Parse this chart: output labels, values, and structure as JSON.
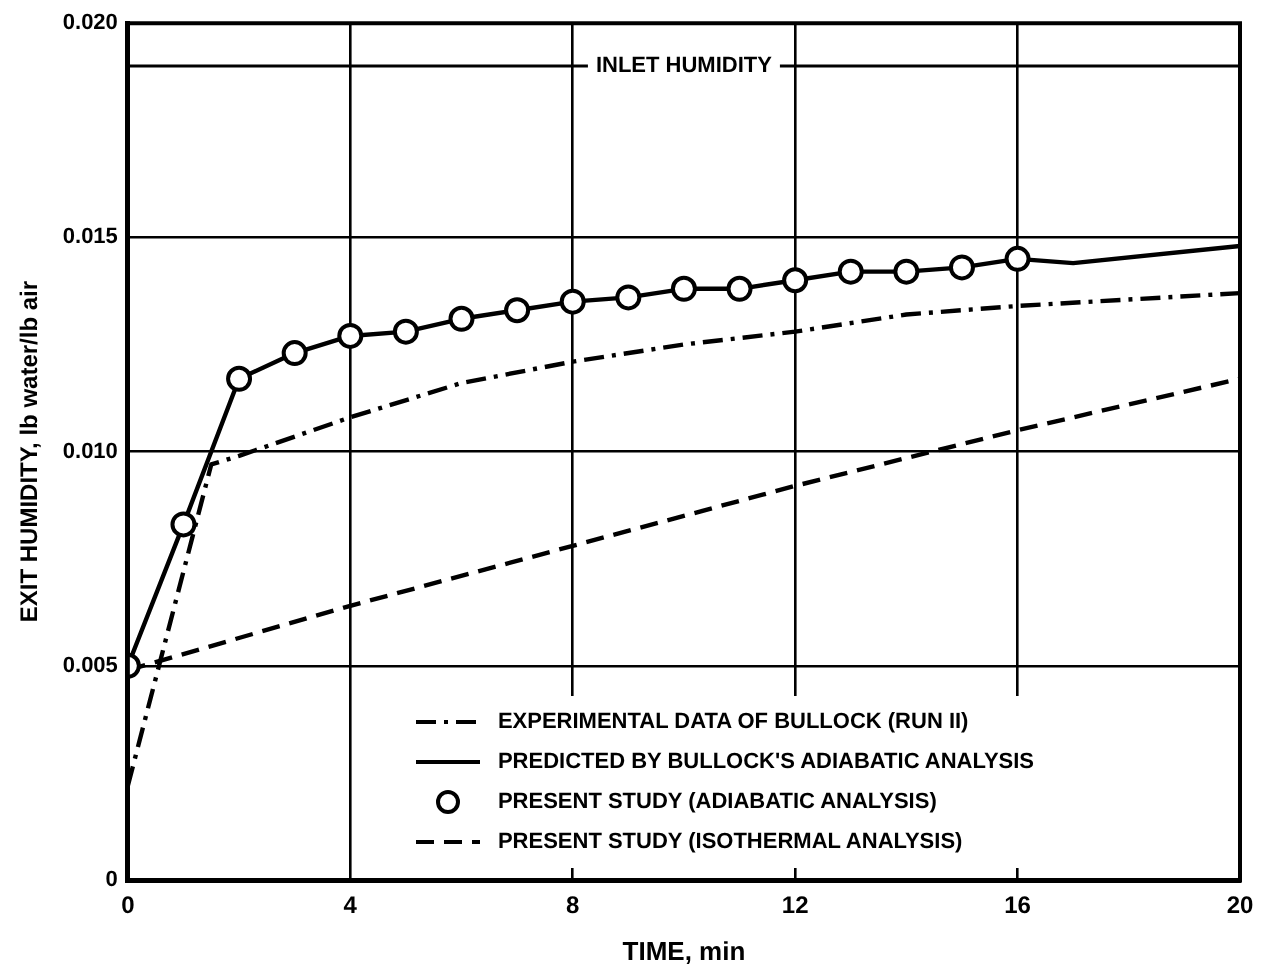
{
  "chart_data": {
    "type": "line",
    "xlabel": "TIME, min",
    "ylabel": "EXIT HUMIDITY, lb water/lb air",
    "xlim": [
      0,
      20
    ],
    "xticks": [
      0,
      4,
      8,
      12,
      16,
      20
    ],
    "ylim": [
      0,
      0.02
    ],
    "yticks": [
      0,
      0.005,
      {
        "value": 0.01,
        "label": "0.010"
      },
      0.015,
      {
        "value": 0.02,
        "label": "0.020"
      }
    ],
    "grid": true,
    "legend": "bottom",
    "ref_lines": [
      {
        "axis": "y",
        "value": 0.019,
        "label": "INLET HUMIDITY"
      }
    ],
    "series": [
      {
        "name": "EXPERIMENTAL DATA OF BULLOCK (RUN II)",
        "line_style": "dashdot",
        "color": "#000000",
        "x": [
          0,
          1.5,
          2,
          4,
          6,
          8,
          10,
          12,
          14,
          16,
          20
        ],
        "values": [
          0.0022,
          0.0097,
          0.0099,
          0.0108,
          0.0116,
          0.0121,
          0.0125,
          0.0128,
          0.0132,
          0.0134,
          0.0137
        ]
      },
      {
        "name": "PREDICTED BY BULLOCK'S ADIABATIC ANALYSIS",
        "line_style": "solid",
        "color": "#000000",
        "x": [
          0,
          1,
          2,
          3,
          4,
          5,
          6,
          7,
          8,
          9,
          10,
          11,
          12,
          13,
          14,
          15,
          16,
          17,
          20
        ],
        "values": [
          0.005,
          0.0083,
          0.0117,
          0.0123,
          0.0127,
          0.0128,
          0.0131,
          0.0133,
          0.0135,
          0.0136,
          0.0138,
          0.0138,
          0.014,
          0.0142,
          0.0142,
          0.0143,
          0.0145,
          0.0144,
          0.0148
        ]
      },
      {
        "name": "PRESENT STUDY (ADIABATIC ANALYSIS)",
        "type": "scatter",
        "marker": "circle",
        "color": "#000000",
        "x": [
          0,
          1,
          2,
          3,
          4,
          5,
          6,
          7,
          8,
          9,
          10,
          11,
          12,
          13,
          14,
          15,
          16
        ],
        "values": [
          0.005,
          0.0083,
          0.0117,
          0.0123,
          0.0127,
          0.0128,
          0.0131,
          0.0133,
          0.0135,
          0.0136,
          0.0138,
          0.0138,
          0.014,
          0.0142,
          0.0142,
          0.0143,
          0.0145
        ]
      },
      {
        "name": "PRESENT STUDY (ISOTHERMAL ANALYSIS)",
        "line_style": "dashed",
        "color": "#000000",
        "x": [
          0,
          4,
          8,
          12,
          16,
          20
        ],
        "values": [
          0.0049,
          0.0064,
          0.0078,
          0.0092,
          0.0105,
          0.0117
        ]
      }
    ]
  }
}
